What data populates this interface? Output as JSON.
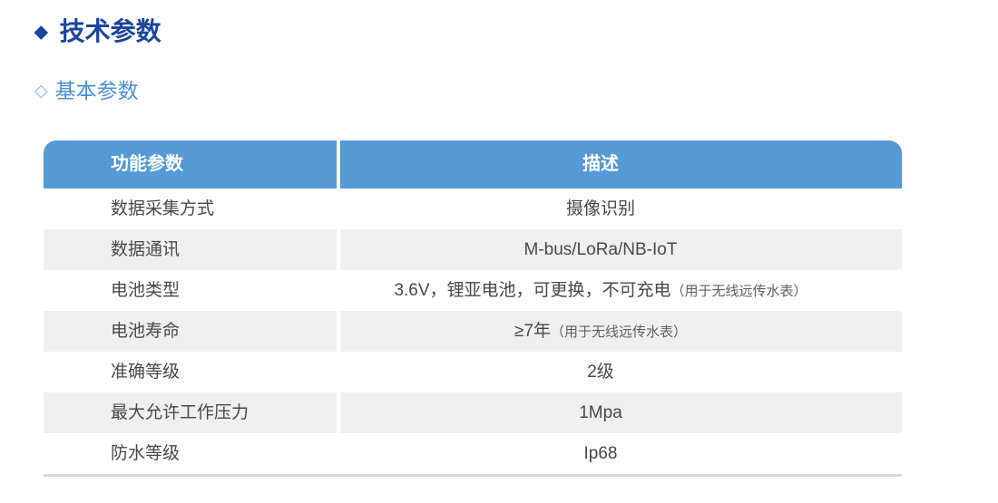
{
  "page": {
    "section_marker": "◆",
    "section_title": "技术参数",
    "subsection_marker": "◇",
    "subsection_title": "基本参数"
  },
  "colors": {
    "section_title_blue": "#1b459c",
    "subsection_blue": "#4a90d6",
    "subsection_marker_blue": "#8cb9e8",
    "table_header_blue": "#559ad6",
    "row_alt_gray": "#efefef",
    "body_text": "#484848",
    "note_text": "#606060",
    "bottom_border": "#d9d9d9"
  },
  "table": {
    "headers": [
      "功能参数",
      "描述"
    ],
    "rows": [
      {
        "param": "数据采集方式",
        "desc": "摄像识别",
        "note": ""
      },
      {
        "param": "数据通讯",
        "desc": "M-bus/LoRa/NB-IoT",
        "note": ""
      },
      {
        "param": "电池类型",
        "desc": "3.6V，锂亚电池，可更换，不可充电",
        "note": "（用于无线远传水表）"
      },
      {
        "param": "电池寿命",
        "desc": "≥7年",
        "note": "（用于无线远传水表）"
      },
      {
        "param": "准确等级",
        "desc": "2级",
        "note": ""
      },
      {
        "param": "最大允许工作压力",
        "desc": "1Mpa",
        "note": ""
      },
      {
        "param": "防水等级",
        "desc": "Ip68",
        "note": ""
      }
    ]
  }
}
